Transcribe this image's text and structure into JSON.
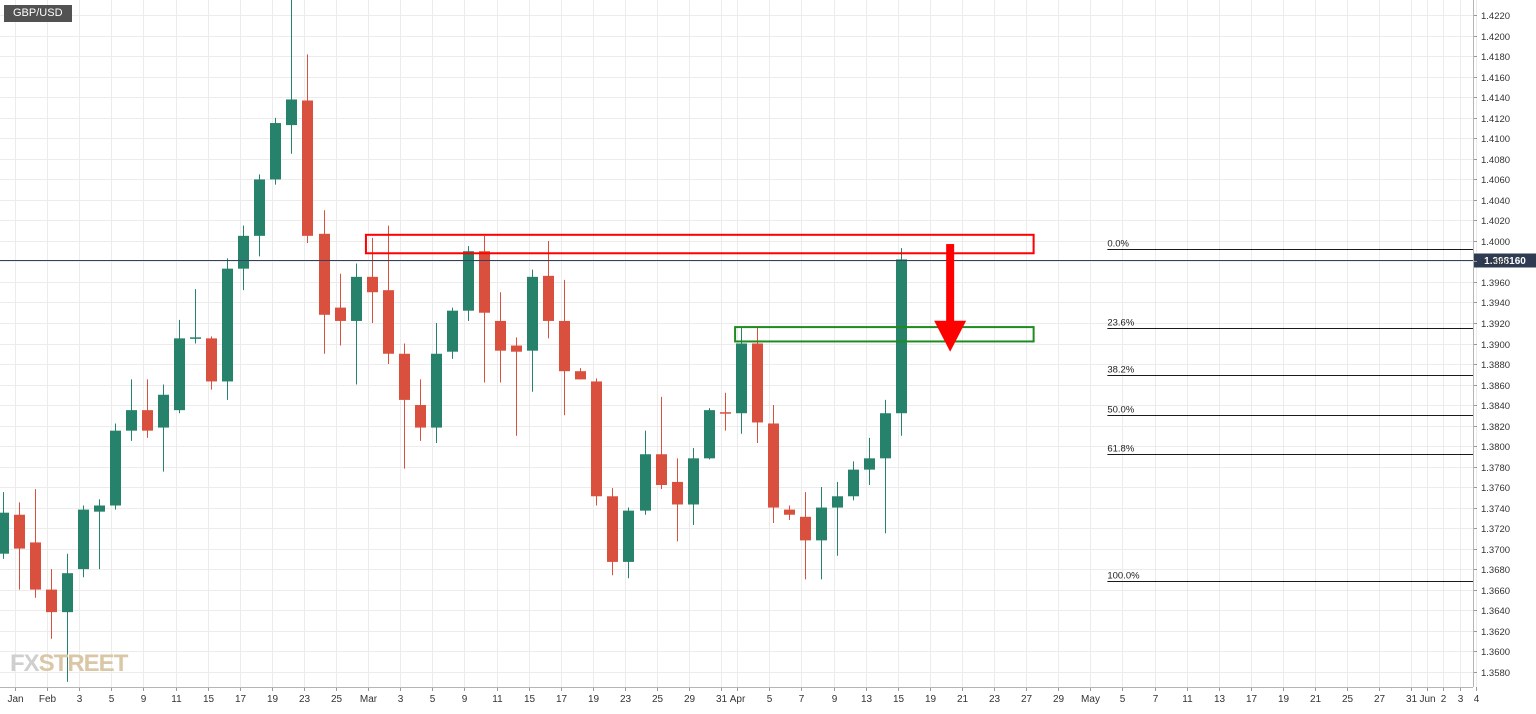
{
  "symbol": "GBP/USD",
  "watermark": {
    "part1": "FX",
    "part2": "STREET"
  },
  "current_price_label": "1.398160",
  "colors": {
    "up": "#26826a",
    "down": "#d9503f",
    "resistance": "#ff0000",
    "support": "#1e8c1e",
    "arrow": "#ff0000",
    "price_line": "#33415c",
    "badge": "#2e3b52"
  },
  "chart_data": {
    "type": "candlestick",
    "title": "GBP/USD",
    "ylim": [
      1.3565,
      1.4235
    ],
    "y_ticks": [
      "1.3580",
      "1.3600",
      "1.3620",
      "1.3640",
      "1.3660",
      "1.3680",
      "1.3700",
      "1.3720",
      "1.3740",
      "1.3760",
      "1.3780",
      "1.3800",
      "1.3820",
      "1.3840",
      "1.3860",
      "1.3880",
      "1.3900",
      "1.3920",
      "1.3940",
      "1.3960",
      "1.3980",
      "1.4000",
      "1.4020",
      "1.4040",
      "1.4060",
      "1.4080",
      "1.4100",
      "1.4120",
      "1.4140",
      "1.4160",
      "1.4180",
      "1.4200",
      "1.4220"
    ],
    "x_ticks": [
      {
        "i": 0,
        "label": "Jan"
      },
      {
        "i": 2,
        "label": "Feb"
      },
      {
        "i": 4,
        "label": "3"
      },
      {
        "i": 6,
        "label": "5"
      },
      {
        "i": 8,
        "label": "9"
      },
      {
        "i": 10,
        "label": "11"
      },
      {
        "i": 12,
        "label": "15"
      },
      {
        "i": 14,
        "label": "17"
      },
      {
        "i": 16,
        "label": "19"
      },
      {
        "i": 18,
        "label": "23"
      },
      {
        "i": 20,
        "label": "25"
      },
      {
        "i": 22,
        "label": "Mar"
      },
      {
        "i": 24,
        "label": "3"
      },
      {
        "i": 26,
        "label": "5"
      },
      {
        "i": 28,
        "label": "9"
      },
      {
        "i": 30,
        "label": "11"
      },
      {
        "i": 32,
        "label": "15"
      },
      {
        "i": 34,
        "label": "17"
      },
      {
        "i": 36,
        "label": "19"
      },
      {
        "i": 38,
        "label": "23"
      },
      {
        "i": 40,
        "label": "25"
      },
      {
        "i": 42,
        "label": "29"
      },
      {
        "i": 44,
        "label": "31"
      },
      {
        "i": 45,
        "label": "Apr"
      },
      {
        "i": 47,
        "label": "5"
      },
      {
        "i": 49,
        "label": "7"
      },
      {
        "i": 51,
        "label": "9"
      },
      {
        "i": 53,
        "label": "13"
      },
      {
        "i": 55,
        "label": "15"
      },
      {
        "i": 57,
        "label": "19"
      },
      {
        "i": 59,
        "label": "21"
      },
      {
        "i": 61,
        "label": "23"
      },
      {
        "i": 63,
        "label": "27"
      },
      {
        "i": 65,
        "label": "29"
      },
      {
        "i": 67,
        "label": "May"
      },
      {
        "i": 69,
        "label": "5"
      },
      {
        "i": 71,
        "label": "7"
      },
      {
        "i": 73,
        "label": "11"
      },
      {
        "i": 75,
        "label": "13"
      },
      {
        "i": 77,
        "label": "17"
      },
      {
        "i": 79,
        "label": "19"
      },
      {
        "i": 81,
        "label": "21"
      },
      {
        "i": 83,
        "label": "25"
      },
      {
        "i": 85,
        "label": "27"
      },
      {
        "i": 87,
        "label": "31"
      },
      {
        "i": 88,
        "label": "Jun"
      },
      {
        "i": 89,
        "label": "2"
      },
      {
        "i": 90,
        "label": "3"
      },
      {
        "i": 91,
        "label": "4"
      }
    ],
    "candles": [
      {
        "o": 1.3695,
        "h": 1.3755,
        "l": 1.369,
        "c": 1.3735
      },
      {
        "o": 1.3733,
        "h": 1.3745,
        "l": 1.366,
        "c": 1.37
      },
      {
        "o": 1.3706,
        "h": 1.3758,
        "l": 1.3652,
        "c": 1.366
      },
      {
        "o": 1.366,
        "h": 1.368,
        "l": 1.3612,
        "c": 1.3638
      },
      {
        "o": 1.3638,
        "h": 1.3695,
        "l": 1.357,
        "c": 1.3676
      },
      {
        "o": 1.368,
        "h": 1.3742,
        "l": 1.3672,
        "c": 1.3738
      },
      {
        "o": 1.3736,
        "h": 1.3748,
        "l": 1.368,
        "c": 1.3742
      },
      {
        "o": 1.3742,
        "h": 1.3822,
        "l": 1.3738,
        "c": 1.3815
      },
      {
        "o": 1.3815,
        "h": 1.3865,
        "l": 1.3805,
        "c": 1.3835
      },
      {
        "o": 1.3835,
        "h": 1.3865,
        "l": 1.3808,
        "c": 1.3815
      },
      {
        "o": 1.3818,
        "h": 1.386,
        "l": 1.3775,
        "c": 1.385
      },
      {
        "o": 1.3835,
        "h": 1.3923,
        "l": 1.3832,
        "c": 1.3905
      },
      {
        "o": 1.3905,
        "h": 1.3953,
        "l": 1.39,
        "c": 1.3906
      },
      {
        "o": 1.3905,
        "h": 1.3907,
        "l": 1.3855,
        "c": 1.3863
      },
      {
        "o": 1.3863,
        "h": 1.3983,
        "l": 1.3845,
        "c": 1.3973
      },
      {
        "o": 1.3973,
        "h": 1.4015,
        "l": 1.3952,
        "c": 1.4005
      },
      {
        "o": 1.4005,
        "h": 1.4065,
        "l": 1.3985,
        "c": 1.406
      },
      {
        "o": 1.406,
        "h": 1.412,
        "l": 1.4055,
        "c": 1.4115
      },
      {
        "o": 1.4113,
        "h": 1.424,
        "l": 1.4085,
        "c": 1.4138
      },
      {
        "o": 1.4137,
        "h": 1.4182,
        "l": 1.3998,
        "c": 1.4005
      },
      {
        "o": 1.4007,
        "h": 1.403,
        "l": 1.389,
        "c": 1.3928
      },
      {
        "o": 1.3935,
        "h": 1.3968,
        "l": 1.3898,
        "c": 1.3922
      },
      {
        "o": 1.3922,
        "h": 1.3978,
        "l": 1.386,
        "c": 1.3965
      },
      {
        "o": 1.3965,
        "h": 1.4003,
        "l": 1.392,
        "c": 1.395
      },
      {
        "o": 1.3952,
        "h": 1.4015,
        "l": 1.388,
        "c": 1.389
      },
      {
        "o": 1.389,
        "h": 1.39,
        "l": 1.3778,
        "c": 1.3845
      },
      {
        "o": 1.384,
        "h": 1.3865,
        "l": 1.3805,
        "c": 1.3818
      },
      {
        "o": 1.3818,
        "h": 1.392,
        "l": 1.3803,
        "c": 1.389
      },
      {
        "o": 1.3892,
        "h": 1.3935,
        "l": 1.3885,
        "c": 1.3932
      },
      {
        "o": 1.3932,
        "h": 1.3995,
        "l": 1.3922,
        "c": 1.399
      },
      {
        "o": 1.399,
        "h": 1.4005,
        "l": 1.3862,
        "c": 1.393
      },
      {
        "o": 1.3922,
        "h": 1.395,
        "l": 1.3862,
        "c": 1.3893
      },
      {
        "o": 1.3898,
        "h": 1.3906,
        "l": 1.381,
        "c": 1.3892
      },
      {
        "o": 1.3893,
        "h": 1.3972,
        "l": 1.3853,
        "c": 1.3965
      },
      {
        "o": 1.3966,
        "h": 1.4,
        "l": 1.3905,
        "c": 1.3922
      },
      {
        "o": 1.3922,
        "h": 1.3962,
        "l": 1.383,
        "c": 1.3873
      },
      {
        "o": 1.3873,
        "h": 1.3876,
        "l": 1.3865,
        "c": 1.3865
      },
      {
        "o": 1.3863,
        "h": 1.3866,
        "l": 1.3742,
        "c": 1.3751
      },
      {
        "o": 1.3751,
        "h": 1.3759,
        "l": 1.3674,
        "c": 1.3687
      },
      {
        "o": 1.3687,
        "h": 1.374,
        "l": 1.3671,
        "c": 1.3737
      },
      {
        "o": 1.3737,
        "h": 1.3815,
        "l": 1.3733,
        "c": 1.3792
      },
      {
        "o": 1.3792,
        "h": 1.3848,
        "l": 1.3758,
        "c": 1.3762
      },
      {
        "o": 1.3765,
        "h": 1.3788,
        "l": 1.3707,
        "c": 1.3743
      },
      {
        "o": 1.3743,
        "h": 1.3798,
        "l": 1.3723,
        "c": 1.3788
      },
      {
        "o": 1.3788,
        "h": 1.3837,
        "l": 1.3787,
        "c": 1.3835
      },
      {
        "o": 1.3833,
        "h": 1.3852,
        "l": 1.3815,
        "c": 1.3832
      },
      {
        "o": 1.3832,
        "h": 1.3915,
        "l": 1.3812,
        "c": 1.39
      },
      {
        "o": 1.39,
        "h": 1.3917,
        "l": 1.3803,
        "c": 1.3823
      },
      {
        "o": 1.3822,
        "h": 1.384,
        "l": 1.3725,
        "c": 1.374
      },
      {
        "o": 1.3738,
        "h": 1.3742,
        "l": 1.3728,
        "c": 1.3733
      },
      {
        "o": 1.3731,
        "h": 1.3755,
        "l": 1.367,
        "c": 1.3708
      },
      {
        "o": 1.3708,
        "h": 1.376,
        "l": 1.367,
        "c": 1.374
      },
      {
        "o": 1.374,
        "h": 1.3765,
        "l": 1.3693,
        "c": 1.3751
      },
      {
        "o": 1.3751,
        "h": 1.3785,
        "l": 1.3747,
        "c": 1.3777
      },
      {
        "o": 1.3777,
        "h": 1.3808,
        "l": 1.3762,
        "c": 1.3788
      },
      {
        "o": 1.3788,
        "h": 1.3845,
        "l": 1.3715,
        "c": 1.3832
      },
      {
        "o": 1.3832,
        "h": 1.3993,
        "l": 1.381,
        "c": 1.3982
      }
    ],
    "resistance_zone": {
      "x_start": 22.8,
      "x_end": 64.4,
      "y_low": 1.3988,
      "y_high": 1.4006
    },
    "support_zone": {
      "x_start": 45.8,
      "x_end": 64.4,
      "y_low": 1.3902,
      "y_high": 1.3916
    },
    "arrow": {
      "x": 59.2,
      "from": 1.3997,
      "to": 1.3892
    },
    "current_price": 1.39816,
    "fib_start_x": 67,
    "fibonacci": [
      {
        "label": "0.0%",
        "value": 1.3992
      },
      {
        "label": "23.6%",
        "value": 1.3915
      },
      {
        "label": "38.2%",
        "value": 1.3869
      },
      {
        "label": "50.0%",
        "value": 1.383
      },
      {
        "label": "61.8%",
        "value": 1.3792
      },
      {
        "label": "100.0%",
        "value": 1.3668
      }
    ]
  }
}
